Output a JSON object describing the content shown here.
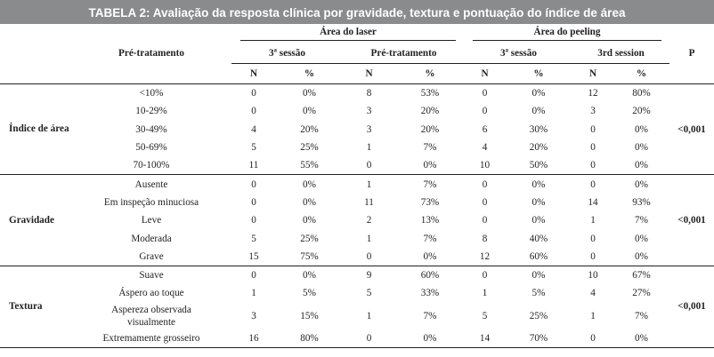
{
  "title": "TABELA 2: Avaliação da resposta clínica por gravidade, textura e pontuação do índice de área",
  "header": {
    "pre_tratamento": "Pré-tratamento",
    "area_laser": "Área do laser",
    "area_peeling": "Área do peeling",
    "p": "P",
    "sub": [
      "3ª sessão",
      "Pré-tratamento",
      "3ª sessão",
      "3rd session"
    ],
    "n": "N",
    "pct": "%"
  },
  "groups": [
    {
      "label": "Índice de área",
      "p": "<0,001",
      "rows": [
        {
          "label": "<10%",
          "v": [
            "0",
            "0%",
            "8",
            "53%",
            "0",
            "0%",
            "12",
            "80%"
          ]
        },
        {
          "label": "10-29%",
          "v": [
            "0",
            "0%",
            "3",
            "20%",
            "0",
            "0%",
            "3",
            "20%"
          ]
        },
        {
          "label": "30-49%",
          "v": [
            "4",
            "20%",
            "3",
            "20%",
            "6",
            "30%",
            "0",
            "0%"
          ]
        },
        {
          "label": "50-69%",
          "v": [
            "5",
            "25%",
            "1",
            "7%",
            "4",
            "20%",
            "0",
            "0%"
          ]
        },
        {
          "label": "70-100%",
          "v": [
            "11",
            "55%",
            "0",
            "0%",
            "10",
            "50%",
            "0",
            "0%"
          ]
        }
      ]
    },
    {
      "label": "Gravidade",
      "p": "<0,001",
      "rows": [
        {
          "label": "Ausente",
          "v": [
            "0",
            "0%",
            "1",
            "7%",
            "0",
            "0%",
            "0",
            "0%"
          ]
        },
        {
          "label": "Em inspeção minuciosa",
          "v": [
            "0",
            "0%",
            "11",
            "73%",
            "0",
            "0%",
            "14",
            "93%"
          ]
        },
        {
          "label": "Leve",
          "v": [
            "0",
            "0%",
            "2",
            "13%",
            "0",
            "0%",
            "1",
            "7%"
          ]
        },
        {
          "label": "Moderada",
          "v": [
            "5",
            "25%",
            "1",
            "7%",
            "8",
            "40%",
            "0",
            "0%"
          ]
        },
        {
          "label": "Grave",
          "v": [
            "15",
            "75%",
            "0",
            "0%",
            "12",
            "60%",
            "0",
            "0%"
          ]
        }
      ]
    },
    {
      "label": "Textura",
      "p": "<0,001",
      "rows": [
        {
          "label": "Suave",
          "v": [
            "0",
            "0%",
            "9",
            "60%",
            "0",
            "0%",
            "10",
            "67%"
          ]
        },
        {
          "label": "Áspero ao toque",
          "v": [
            "1",
            "5%",
            "5",
            "33%",
            "1",
            "5%",
            "4",
            "27%"
          ]
        },
        {
          "label": "Aspereza observada visualmente",
          "v": [
            "3",
            "15%",
            "1",
            "7%",
            "5",
            "25%",
            "1",
            "7%"
          ]
        },
        {
          "label": "Extremamente grosseiro",
          "v": [
            "16",
            "80%",
            "0",
            "0%",
            "14",
            "70%",
            "0",
            "0%"
          ]
        }
      ]
    }
  ]
}
